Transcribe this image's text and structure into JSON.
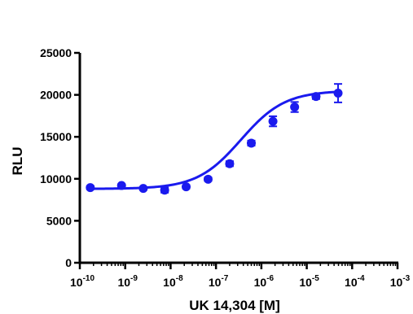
{
  "chart_data": {
    "type": "scatter",
    "title": "",
    "xlabel": "UK 14,304 [M]",
    "ylabel": "RLU",
    "x_scale": "log",
    "xlim": [
      1e-10,
      0.001
    ],
    "ylim": [
      0,
      25000
    ],
    "grid": false,
    "x_ticks": [
      {
        "value": 1e-10,
        "base": "10",
        "exp": "-10"
      },
      {
        "value": 1e-09,
        "base": "10",
        "exp": "-9"
      },
      {
        "value": 1e-08,
        "base": "10",
        "exp": "-8"
      },
      {
        "value": 1e-07,
        "base": "10",
        "exp": "-7"
      },
      {
        "value": 1e-06,
        "base": "10",
        "exp": "-6"
      },
      {
        "value": 1e-05,
        "base": "10",
        "exp": "-5"
      },
      {
        "value": 0.0001,
        "base": "10",
        "exp": "-4"
      },
      {
        "value": 0.001,
        "base": "10",
        "exp": "-3"
      }
    ],
    "y_ticks": [
      {
        "value": 0,
        "label": "0"
      },
      {
        "value": 5000,
        "label": "5000"
      },
      {
        "value": 10000,
        "label": "10000"
      },
      {
        "value": 15000,
        "label": "15000"
      },
      {
        "value": 20000,
        "label": "20000"
      },
      {
        "value": 25000,
        "label": "25000"
      }
    ],
    "color": "#1a1aee",
    "series": [
      {
        "points": [
          {
            "x": 1.7e-10,
            "y": 8950,
            "err": 200
          },
          {
            "x": 8.3e-10,
            "y": 9200,
            "err": 150
          },
          {
            "x": 2.5e-09,
            "y": 8850,
            "err": 150
          },
          {
            "x": 7.4e-09,
            "y": 8650,
            "err": 300
          },
          {
            "x": 2.2e-08,
            "y": 9050,
            "err": 200
          },
          {
            "x": 6.7e-08,
            "y": 9950,
            "err": 200
          },
          {
            "x": 2e-07,
            "y": 11800,
            "err": 300
          },
          {
            "x": 6e-07,
            "y": 14250,
            "err": 300
          },
          {
            "x": 1.8e-06,
            "y": 16850,
            "err": 600
          },
          {
            "x": 5.4e-06,
            "y": 18550,
            "err": 600
          },
          {
            "x": 1.6e-05,
            "y": 19800,
            "err": 300
          },
          {
            "x": 4.9e-05,
            "y": 20200,
            "err": 1100
          }
        ],
        "fit": {
          "model": "sigmoidal dose-response",
          "bottom": 8800,
          "top": 20500,
          "log_ec50": -6.45,
          "hill": 0.9,
          "x_range": [
            1.5e-10,
            4.9e-05
          ]
        }
      }
    ]
  }
}
